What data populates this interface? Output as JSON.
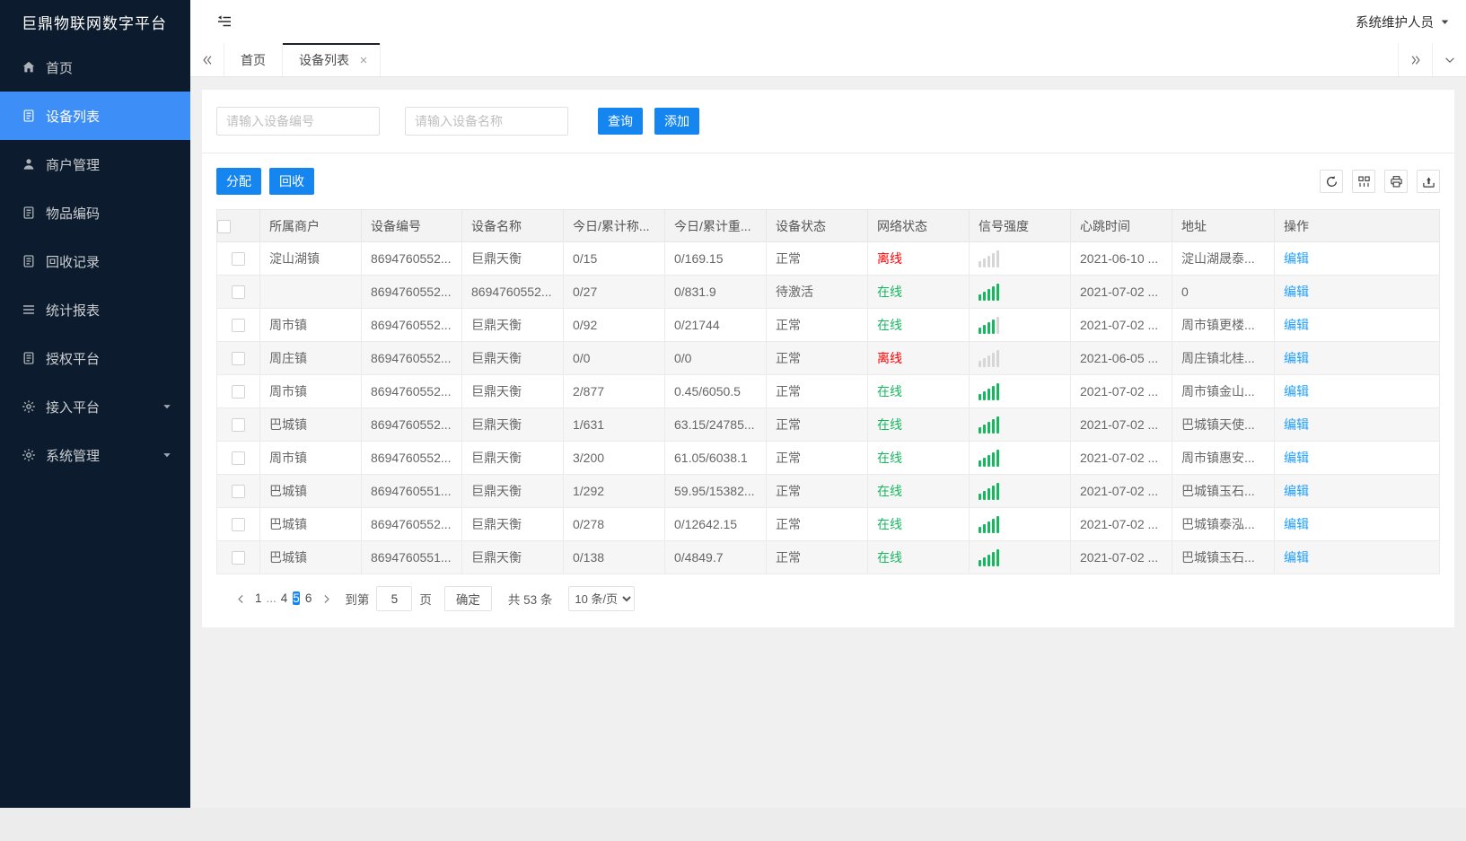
{
  "app": {
    "logo": "巨鼎物联网数字平台"
  },
  "topbar": {
    "user_name": "系统维护人员"
  },
  "sidebar": {
    "items": [
      {
        "label": "首页",
        "icon": "home",
        "active": false,
        "caret": false
      },
      {
        "label": "设备列表",
        "icon": "doc",
        "active": true,
        "caret": false
      },
      {
        "label": "商户管理",
        "icon": "user",
        "active": false,
        "caret": false
      },
      {
        "label": "物品编码",
        "icon": "doc",
        "active": false,
        "caret": false
      },
      {
        "label": "回收记录",
        "icon": "doc",
        "active": false,
        "caret": false
      },
      {
        "label": "统计报表",
        "icon": "list",
        "active": false,
        "caret": false
      },
      {
        "label": "授权平台",
        "icon": "doc",
        "active": false,
        "caret": false
      },
      {
        "label": "接入平台",
        "icon": "gear",
        "active": false,
        "caret": true
      },
      {
        "label": "系统管理",
        "icon": "gear",
        "active": false,
        "caret": true
      }
    ]
  },
  "tabs": {
    "items": [
      {
        "label": "首页",
        "active": false
      },
      {
        "label": "设备列表",
        "active": true
      }
    ]
  },
  "search": {
    "device_no_placeholder": "请输入设备编号",
    "device_name_placeholder": "请输入设备名称",
    "query_label": "查询",
    "add_label": "添加"
  },
  "toolbar": {
    "assign_label": "分配",
    "recycle_label": "回收",
    "icons": [
      "refresh",
      "columns",
      "print",
      "export"
    ]
  },
  "table": {
    "headers": [
      "所属商户",
      "设备编号",
      "设备名称",
      "今日/累计称...",
      "今日/累计重...",
      "设备状态",
      "网络状态",
      "信号强度",
      "心跳时间",
      "地址",
      "操作"
    ],
    "rows": [
      {
        "merchant": "淀山湖镇",
        "device_no": "8694760552...",
        "device_name": "巨鼎天衡",
        "today_count": "0/15",
        "today_weight": "0/169.15",
        "device_status": "正常",
        "network_status": "离线",
        "online": false,
        "signal": 0,
        "heartbeat": "2021-06-10 ...",
        "address": "淀山湖晟泰...",
        "action": "编辑"
      },
      {
        "merchant": "",
        "device_no": "8694760552...",
        "device_name": "8694760552...",
        "today_count": "0/27",
        "today_weight": "0/831.9",
        "device_status": "待激活",
        "network_status": "在线",
        "online": true,
        "signal": 5,
        "heartbeat": "2021-07-02 ...",
        "address": "0",
        "action": "编辑"
      },
      {
        "merchant": "周市镇",
        "device_no": "8694760552...",
        "device_name": "巨鼎天衡",
        "today_count": "0/92",
        "today_weight": "0/21744",
        "device_status": "正常",
        "network_status": "在线",
        "online": true,
        "signal": 4,
        "heartbeat": "2021-07-02 ...",
        "address": "周市镇更楼...",
        "action": "编辑"
      },
      {
        "merchant": "周庄镇",
        "device_no": "8694760552...",
        "device_name": "巨鼎天衡",
        "today_count": "0/0",
        "today_weight": "0/0",
        "device_status": "正常",
        "network_status": "离线",
        "online": false,
        "signal": 0,
        "heartbeat": "2021-06-05 ...",
        "address": "周庄镇北桂...",
        "action": "编辑"
      },
      {
        "merchant": "周市镇",
        "device_no": "8694760552...",
        "device_name": "巨鼎天衡",
        "today_count": "2/877",
        "today_weight": "0.45/6050.5",
        "device_status": "正常",
        "network_status": "在线",
        "online": true,
        "signal": 5,
        "heartbeat": "2021-07-02 ...",
        "address": "周市镇金山...",
        "action": "编辑"
      },
      {
        "merchant": "巴城镇",
        "device_no": "8694760552...",
        "device_name": "巨鼎天衡",
        "today_count": "1/631",
        "today_weight": "63.15/24785...",
        "device_status": "正常",
        "network_status": "在线",
        "online": true,
        "signal": 5,
        "heartbeat": "2021-07-02 ...",
        "address": "巴城镇天使...",
        "action": "编辑"
      },
      {
        "merchant": "周市镇",
        "device_no": "8694760552...",
        "device_name": "巨鼎天衡",
        "today_count": "3/200",
        "today_weight": "61.05/6038.1",
        "device_status": "正常",
        "network_status": "在线",
        "online": true,
        "signal": 5,
        "heartbeat": "2021-07-02 ...",
        "address": "周市镇惠安...",
        "action": "编辑"
      },
      {
        "merchant": "巴城镇",
        "device_no": "8694760551...",
        "device_name": "巨鼎天衡",
        "today_count": "1/292",
        "today_weight": "59.95/15382...",
        "device_status": "正常",
        "network_status": "在线",
        "online": true,
        "signal": 5,
        "heartbeat": "2021-07-02 ...",
        "address": "巴城镇玉石...",
        "action": "编辑"
      },
      {
        "merchant": "巴城镇",
        "device_no": "8694760552...",
        "device_name": "巨鼎天衡",
        "today_count": "0/278",
        "today_weight": "0/12642.15",
        "device_status": "正常",
        "network_status": "在线",
        "online": true,
        "signal": 5,
        "heartbeat": "2021-07-02 ...",
        "address": "巴城镇泰泓...",
        "action": "编辑"
      },
      {
        "merchant": "巴城镇",
        "device_no": "8694760551...",
        "device_name": "巨鼎天衡",
        "today_count": "0/138",
        "today_weight": "0/4849.7",
        "device_status": "正常",
        "network_status": "在线",
        "online": true,
        "signal": 5,
        "heartbeat": "2021-07-02 ...",
        "address": "巴城镇玉石...",
        "action": "编辑"
      }
    ]
  },
  "pagination": {
    "pages": [
      "1",
      "...",
      "4",
      "5",
      "6"
    ],
    "active_page": "5",
    "jump_prefix": "到第",
    "jump_value": "5",
    "jump_suffix": "页",
    "confirm_label": "确定",
    "total_label": "共 53 条",
    "per_page": "10 条/页"
  },
  "colors": {
    "primary_blue": "#1586f0",
    "sidebar_active_blue": "#3e8ef7",
    "online_green": "#15b75f",
    "offline_red": "#ff0000",
    "link_blue": "#1e9fff",
    "sidebar_bg": "#0c1b2d"
  }
}
